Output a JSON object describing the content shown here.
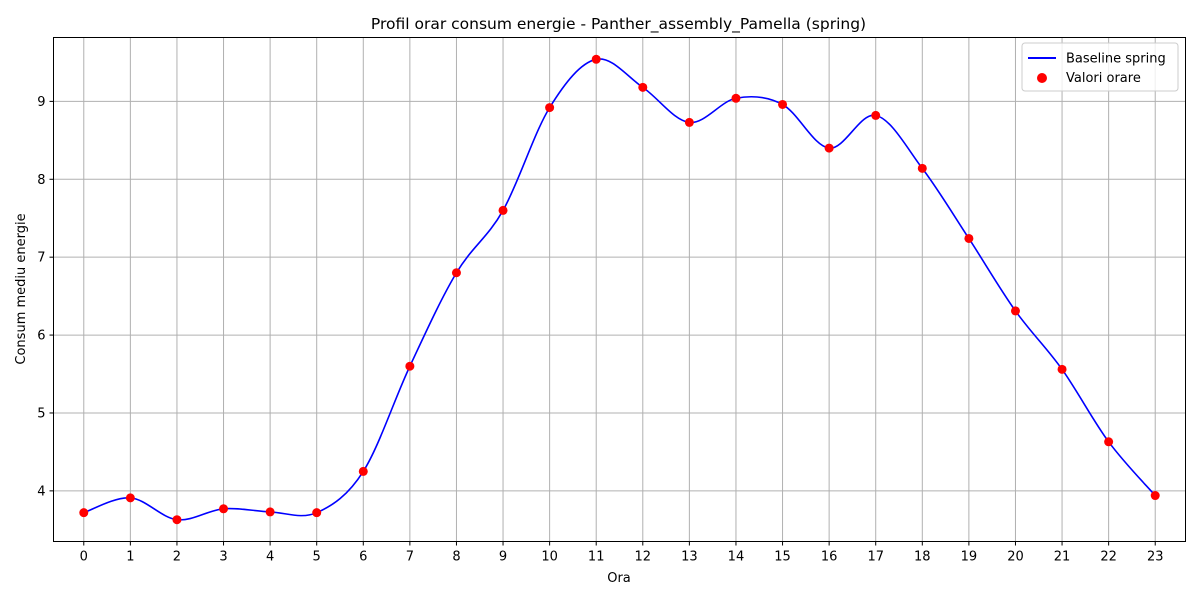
{
  "chart_data": {
    "type": "line",
    "title": "Profil orar consum energie - Panther_assembly_Pamella (spring)",
    "xlabel": "Ora",
    "ylabel": "Consum mediu energie",
    "x": [
      0,
      1,
      2,
      3,
      4,
      5,
      6,
      7,
      8,
      9,
      10,
      11,
      12,
      13,
      14,
      15,
      16,
      17,
      18,
      19,
      20,
      21,
      22,
      23
    ],
    "x_tick_labels": [
      "0",
      "1",
      "2",
      "3",
      "4",
      "5",
      "6",
      "7",
      "8",
      "9",
      "10",
      "11",
      "12",
      "13",
      "14",
      "15",
      "16",
      "17",
      "18",
      "19",
      "20",
      "21",
      "22",
      "23"
    ],
    "y_ticks": [
      4,
      5,
      6,
      7,
      8,
      9
    ],
    "y_tick_labels": [
      "4",
      "5",
      "6",
      "7",
      "8",
      "9"
    ],
    "xlim": [
      -0.65,
      23.65
    ],
    "ylim": [
      3.35,
      9.82
    ],
    "grid": true,
    "legend_position": "top-right",
    "series": [
      {
        "name": "Baseline spring",
        "kind": "smooth-line",
        "color": "#0000ff",
        "values": [
          3.72,
          3.91,
          3.63,
          3.77,
          3.73,
          3.72,
          4.25,
          5.6,
          6.8,
          7.6,
          8.92,
          9.54,
          9.18,
          8.73,
          9.04,
          8.96,
          8.4,
          8.82,
          8.14,
          7.24,
          6.31,
          5.56,
          4.63,
          3.94
        ]
      },
      {
        "name": "Valori orare",
        "kind": "scatter",
        "color": "#ff0000",
        "values": [
          3.72,
          3.91,
          3.63,
          3.77,
          3.73,
          3.72,
          4.25,
          5.6,
          6.8,
          7.6,
          8.92,
          9.54,
          9.18,
          8.73,
          9.04,
          8.96,
          8.4,
          8.82,
          8.14,
          7.24,
          6.31,
          5.56,
          4.63,
          3.94
        ]
      }
    ]
  }
}
